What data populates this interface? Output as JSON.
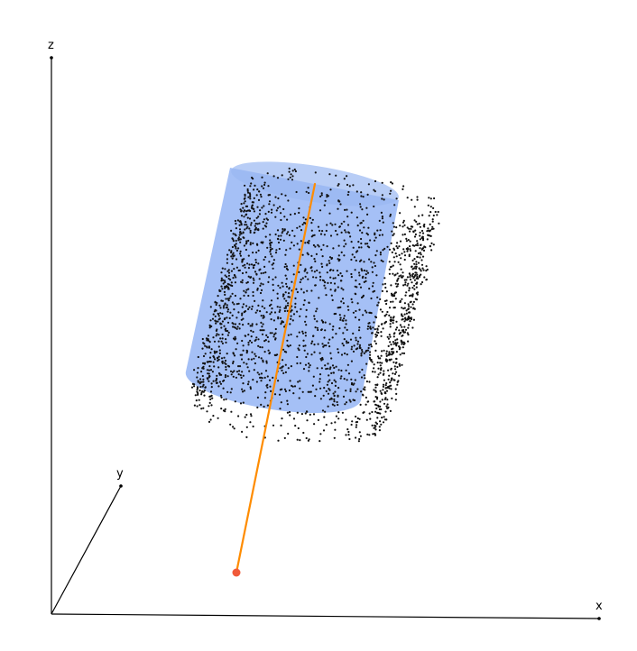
{
  "axes": {
    "x_label": "x",
    "y_label": "y",
    "z_label": "z"
  },
  "colors": {
    "background": "#ffffff",
    "axis": "#000000",
    "cylinder_fill": "#5b8def",
    "cylinder_top": "#9ab8f2",
    "points": "#111111",
    "fit_axis_line": "#ff8c00",
    "origin_point": "#f05a3a"
  },
  "point_cloud": {
    "point_count": 2200
  }
}
